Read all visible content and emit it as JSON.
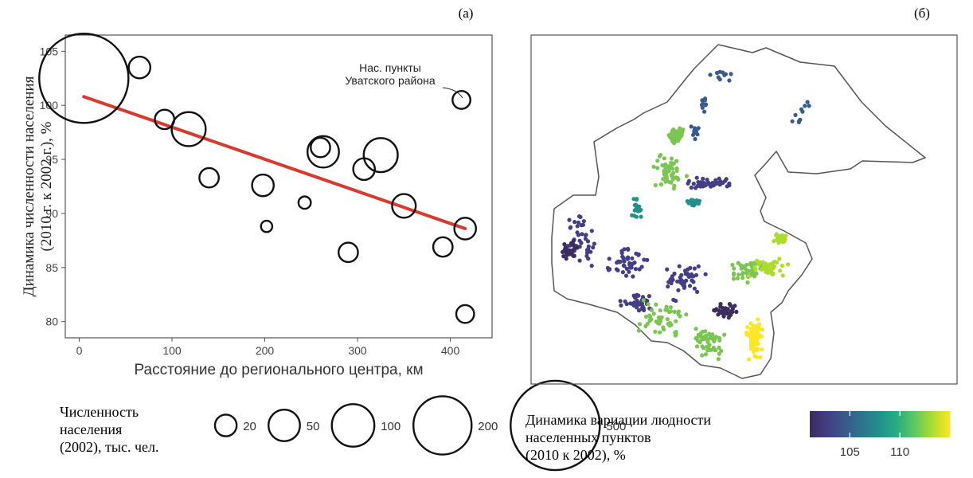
{
  "panels": {
    "left_label": "(а)",
    "right_label": "(б)"
  },
  "chart_data": [
    {
      "type": "scatter",
      "title": "",
      "xlabel": "Расстояние до регионального центра, км",
      "ylabel_line1": "Динамика численности населения",
      "ylabel_line2": "(2010 г. к 2002 г.), %",
      "xlim": [
        -15,
        445
      ],
      "ylim": [
        78.5,
        106.5
      ],
      "xticks": [
        0,
        100,
        200,
        300,
        400
      ],
      "yticks": [
        80,
        85,
        90,
        95,
        100,
        105
      ],
      "grid": false,
      "points": [
        {
          "x": 5,
          "y": 102.5,
          "pop": 500
        },
        {
          "x": 65,
          "y": 103.5,
          "pop": 20
        },
        {
          "x": 92,
          "y": 98.7,
          "pop": 15
        },
        {
          "x": 118,
          "y": 97.8,
          "pop": 60
        },
        {
          "x": 140,
          "y": 93.3,
          "pop": 15
        },
        {
          "x": 198,
          "y": 92.6,
          "pop": 20
        },
        {
          "x": 202,
          "y": 88.8,
          "pop": 3
        },
        {
          "x": 243,
          "y": 91.0,
          "pop": 4
        },
        {
          "x": 260,
          "y": 96.1,
          "pop": 15
        },
        {
          "x": 263,
          "y": 95.7,
          "pop": 50
        },
        {
          "x": 290,
          "y": 86.4,
          "pop": 15
        },
        {
          "x": 307,
          "y": 94.1,
          "pop": 20
        },
        {
          "x": 325,
          "y": 95.4,
          "pop": 60
        },
        {
          "x": 350,
          "y": 90.7,
          "pop": 25
        },
        {
          "x": 392,
          "y": 86.9,
          "pop": 15
        },
        {
          "x": 412,
          "y": 100.5,
          "pop": 12
        },
        {
          "x": 416,
          "y": 88.6,
          "pop": 20
        },
        {
          "x": 416,
          "y": 80.7,
          "pop": 12
        }
      ],
      "trend": {
        "x": [
          5,
          416
        ],
        "y": [
          100.8,
          88.6
        ],
        "color": "#d93a30"
      },
      "annotation": {
        "text_line1": "Нас. пункты",
        "text_line2": "Уватского района",
        "x": 412,
        "y": 100.5
      },
      "size_legend": {
        "title_line1": "Численность",
        "title_line2": "населения",
        "title_line3": "(2002), тыс. чел.",
        "entries": [
          {
            "label": "20",
            "value": 20
          },
          {
            "label": "50",
            "value": 50
          },
          {
            "label": "100",
            "value": 100
          },
          {
            "label": "200",
            "value": 200
          },
          {
            "label": "500",
            "value": 500
          }
        ]
      }
    },
    {
      "type": "map",
      "colorbar": {
        "title_line1": "Динамика вариации людности",
        "title_line2": "населенных пунктов",
        "title_line3": "(2010 к 2002), %",
        "ticks": [
          105,
          110
        ],
        "range": [
          101,
          115
        ],
        "colors": [
          "#3b2b5e",
          "#433e85",
          "#38598c",
          "#2b758e",
          "#21918c",
          "#28ae80",
          "#5ec962",
          "#addc30",
          "#fde725"
        ]
      },
      "clusters": [
        {
          "color": "#3a5a8c",
          "n": 40
        },
        {
          "color": "#433e85",
          "n": 220
        },
        {
          "color": "#3b2b5e",
          "n": 60
        },
        {
          "color": "#21918c",
          "n": 35
        },
        {
          "color": "#7cc552",
          "n": 260
        },
        {
          "color": "#addc30",
          "n": 80
        },
        {
          "color": "#fde725",
          "n": 90
        }
      ]
    }
  ]
}
